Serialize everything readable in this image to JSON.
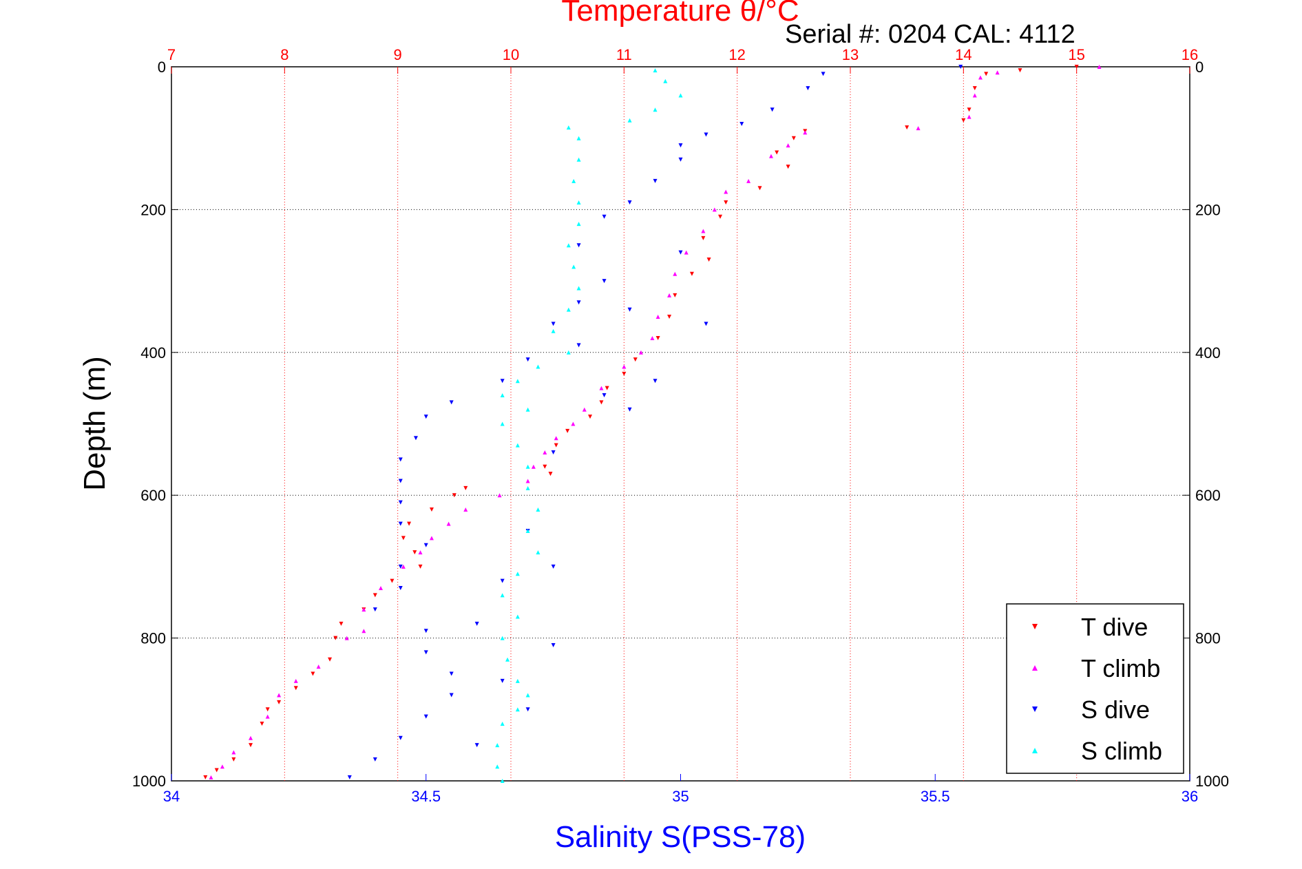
{
  "chart_data": {
    "type": "scatter",
    "title": "Temperature θ/°C",
    "annotation": "Serial #: 0204  CAL: 4112",
    "xlabel": "Salinity S(PSS-78)",
    "ylabel": "Depth (m)",
    "xlim": [
      34,
      36
    ],
    "x2lim": [
      7,
      16
    ],
    "ylim": [
      1000,
      0
    ],
    "x_ticks": [
      "34",
      "34.5",
      "35",
      "35.5",
      "36"
    ],
    "x2_ticks": [
      "7",
      "8",
      "9",
      "10",
      "11",
      "12",
      "13",
      "14",
      "15",
      "16"
    ],
    "y_ticks": [
      "0",
      "200",
      "400",
      "600",
      "800",
      "1000"
    ],
    "grid": true,
    "legend_position": "bottom-right",
    "colors": {
      "temperature_axis": "#ff0000",
      "salinity_axis": "#0000ff"
    },
    "series": [
      {
        "name": "T dive",
        "axis": "temperature",
        "color": "#ff0000",
        "marker": "triangle-down",
        "points": [
          [
            15.0,
            0
          ],
          [
            14.5,
            5
          ],
          [
            14.2,
            10
          ],
          [
            14.1,
            30
          ],
          [
            14.05,
            60
          ],
          [
            14.0,
            75
          ],
          [
            13.5,
            85
          ],
          [
            12.6,
            90
          ],
          [
            12.5,
            100
          ],
          [
            12.35,
            120
          ],
          [
            12.45,
            140
          ],
          [
            12.2,
            170
          ],
          [
            11.9,
            190
          ],
          [
            11.85,
            210
          ],
          [
            11.7,
            240
          ],
          [
            11.75,
            270
          ],
          [
            11.6,
            290
          ],
          [
            11.45,
            320
          ],
          [
            11.4,
            350
          ],
          [
            11.3,
            380
          ],
          [
            11.1,
            410
          ],
          [
            11.0,
            430
          ],
          [
            10.85,
            450
          ],
          [
            10.8,
            470
          ],
          [
            10.7,
            490
          ],
          [
            10.5,
            510
          ],
          [
            10.4,
            530
          ],
          [
            10.3,
            560
          ],
          [
            10.35,
            570
          ],
          [
            9.6,
            590
          ],
          [
            9.5,
            600
          ],
          [
            9.3,
            620
          ],
          [
            9.1,
            640
          ],
          [
            9.05,
            660
          ],
          [
            9.15,
            680
          ],
          [
            9.2,
            700
          ],
          [
            8.95,
            720
          ],
          [
            8.8,
            740
          ],
          [
            8.7,
            760
          ],
          [
            8.5,
            780
          ],
          [
            8.45,
            800
          ],
          [
            8.4,
            830
          ],
          [
            8.25,
            850
          ],
          [
            8.1,
            870
          ],
          [
            7.95,
            890
          ],
          [
            7.85,
            900
          ],
          [
            7.8,
            920
          ],
          [
            7.7,
            950
          ],
          [
            7.55,
            970
          ],
          [
            7.4,
            985
          ],
          [
            7.3,
            995
          ]
        ]
      },
      {
        "name": "T climb",
        "axis": "temperature",
        "color": "#ff00ff",
        "marker": "triangle-up",
        "points": [
          [
            15.2,
            0
          ],
          [
            14.3,
            8
          ],
          [
            14.15,
            15
          ],
          [
            14.1,
            40
          ],
          [
            14.05,
            70
          ],
          [
            13.6,
            86
          ],
          [
            12.6,
            92
          ],
          [
            12.45,
            110
          ],
          [
            12.3,
            125
          ],
          [
            12.1,
            160
          ],
          [
            11.9,
            175
          ],
          [
            11.8,
            200
          ],
          [
            11.7,
            230
          ],
          [
            11.55,
            260
          ],
          [
            11.45,
            290
          ],
          [
            11.4,
            320
          ],
          [
            11.3,
            350
          ],
          [
            11.25,
            380
          ],
          [
            11.15,
            400
          ],
          [
            11.0,
            420
          ],
          [
            10.8,
            450
          ],
          [
            10.65,
            480
          ],
          [
            10.55,
            500
          ],
          [
            10.4,
            520
          ],
          [
            10.3,
            540
          ],
          [
            10.2,
            560
          ],
          [
            10.15,
            580
          ],
          [
            9.9,
            600
          ],
          [
            9.6,
            620
          ],
          [
            9.45,
            640
          ],
          [
            9.3,
            660
          ],
          [
            9.2,
            680
          ],
          [
            9.05,
            700
          ],
          [
            8.85,
            730
          ],
          [
            8.7,
            760
          ],
          [
            8.7,
            790
          ],
          [
            8.55,
            800
          ],
          [
            8.3,
            840
          ],
          [
            8.1,
            860
          ],
          [
            7.95,
            880
          ],
          [
            7.85,
            910
          ],
          [
            7.7,
            940
          ],
          [
            7.55,
            960
          ],
          [
            7.45,
            980
          ],
          [
            7.35,
            995
          ]
        ]
      },
      {
        "name": "S dive",
        "axis": "salinity",
        "color": "#0000ff",
        "marker": "triangle-down",
        "points": [
          [
            35.55,
            0
          ],
          [
            35.28,
            10
          ],
          [
            35.25,
            30
          ],
          [
            35.18,
            60
          ],
          [
            35.12,
            80
          ],
          [
            35.05,
            95
          ],
          [
            35.0,
            110
          ],
          [
            35.0,
            130
          ],
          [
            34.95,
            160
          ],
          [
            34.9,
            190
          ],
          [
            34.85,
            210
          ],
          [
            34.8,
            250
          ],
          [
            34.85,
            300
          ],
          [
            34.8,
            330
          ],
          [
            34.75,
            360
          ],
          [
            34.8,
            390
          ],
          [
            34.7,
            410
          ],
          [
            34.65,
            440
          ],
          [
            34.55,
            470
          ],
          [
            34.5,
            490
          ],
          [
            34.48,
            520
          ],
          [
            34.45,
            550
          ],
          [
            34.45,
            580
          ],
          [
            34.45,
            610
          ],
          [
            34.45,
            640
          ],
          [
            34.5,
            670
          ],
          [
            34.45,
            700
          ],
          [
            34.45,
            730
          ],
          [
            34.4,
            760
          ],
          [
            34.5,
            790
          ],
          [
            34.5,
            820
          ],
          [
            34.55,
            850
          ],
          [
            34.55,
            880
          ],
          [
            34.5,
            910
          ],
          [
            34.45,
            940
          ],
          [
            34.4,
            970
          ],
          [
            34.35,
            995
          ],
          [
            35.0,
            260
          ],
          [
            34.9,
            340
          ],
          [
            35.05,
            360
          ],
          [
            34.95,
            440
          ],
          [
            34.85,
            460
          ],
          [
            34.9,
            480
          ],
          [
            34.75,
            540
          ],
          [
            34.7,
            650
          ],
          [
            34.75,
            700
          ],
          [
            34.65,
            720
          ],
          [
            34.6,
            780
          ],
          [
            34.75,
            810
          ],
          [
            34.65,
            860
          ],
          [
            34.7,
            900
          ],
          [
            34.6,
            950
          ]
        ]
      },
      {
        "name": "S climb",
        "axis": "salinity",
        "color": "#00ffff",
        "marker": "triangle-up",
        "points": [
          [
            34.95,
            5
          ],
          [
            34.97,
            20
          ],
          [
            35.0,
            40
          ],
          [
            34.95,
            60
          ],
          [
            34.9,
            75
          ],
          [
            34.78,
            85
          ],
          [
            34.8,
            100
          ],
          [
            34.8,
            130
          ],
          [
            34.79,
            160
          ],
          [
            34.8,
            190
          ],
          [
            34.8,
            220
          ],
          [
            34.78,
            250
          ],
          [
            34.79,
            280
          ],
          [
            34.8,
            310
          ],
          [
            34.78,
            340
          ],
          [
            34.75,
            370
          ],
          [
            34.78,
            400
          ],
          [
            34.72,
            420
          ],
          [
            34.68,
            440
          ],
          [
            34.65,
            460
          ],
          [
            34.7,
            480
          ],
          [
            34.65,
            500
          ],
          [
            34.68,
            530
          ],
          [
            34.7,
            560
          ],
          [
            34.7,
            590
          ],
          [
            34.72,
            620
          ],
          [
            34.7,
            650
          ],
          [
            34.72,
            680
          ],
          [
            34.68,
            710
          ],
          [
            34.65,
            740
          ],
          [
            34.68,
            770
          ],
          [
            34.65,
            800
          ],
          [
            34.66,
            830
          ],
          [
            34.68,
            860
          ],
          [
            34.7,
            880
          ],
          [
            34.68,
            900
          ],
          [
            34.65,
            920
          ],
          [
            34.64,
            950
          ],
          [
            34.64,
            980
          ],
          [
            34.65,
            1000
          ]
        ]
      }
    ]
  }
}
